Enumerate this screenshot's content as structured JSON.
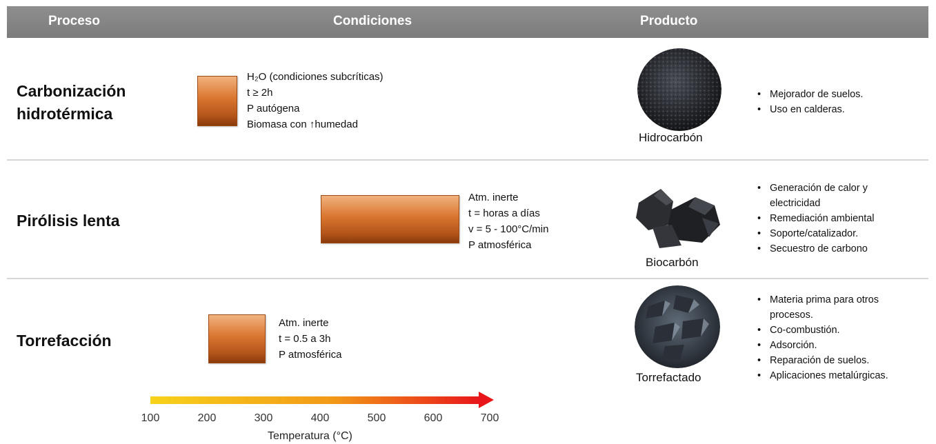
{
  "header": {
    "col_process": "Proceso",
    "col_conditions": "Condiciones",
    "col_product": "Producto"
  },
  "rows": [
    {
      "process_line1": "Carbonización",
      "process_line2": "hidrotérmica",
      "conditions": [
        "H₂O (condiciones subcríticas)",
        "t ≥ 2h",
        "P autógena",
        "Biomasa con ↑humedad"
      ],
      "temp_range_c": [
        200,
        300
      ],
      "product": "Hidrocarbón",
      "product_icon": "hydrochar-photo",
      "applications": [
        "Mejorador de suelos.",
        "Uso en calderas."
      ]
    },
    {
      "process_line1": "Pirólisis lenta",
      "conditions": [
        "Atm. inerte",
        "t = horas a días",
        "v = 5 - 100°C/min",
        "P atmosférica"
      ],
      "temp_range_c": [
        400,
        700
      ],
      "product": "Biocarbón",
      "product_icon": "biochar-photo",
      "applications": [
        "Generación de calor y",
        "electricidad",
        "Remediación ambiental",
        "Soporte/catalizador.",
        "Secuestro de carbono"
      ]
    },
    {
      "process_line1": "Torrefacción",
      "conditions": [
        "Atm. inerte",
        "t = 0.5 a 3h",
        "P atmosférica"
      ],
      "temp_range_c": [
        220,
        320
      ],
      "product": "Torrefactado",
      "product_icon": "torrefied-photo",
      "applications": [
        "Materia prima para otros",
        "procesos.",
        "Co-combustión.",
        "Adsorción.",
        "Reparación de suelos.",
        "Aplicaciones metalúrgicas."
      ]
    }
  ],
  "axis": {
    "ticks": [
      "100",
      "200",
      "300",
      "400",
      "500",
      "600",
      "700"
    ],
    "title": "Temperatura (°C)",
    "range": [
      100,
      700
    ],
    "gradient_start": "#f7d21a",
    "gradient_end": "#e8161a"
  }
}
